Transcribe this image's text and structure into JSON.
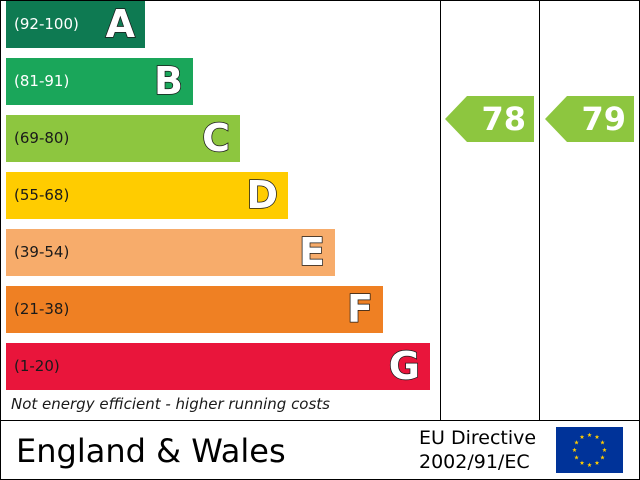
{
  "chart_data": {
    "type": "bar",
    "bands": [
      {
        "range": "(92-100)",
        "letter": "A",
        "color": "#0e7a52",
        "range_color": "#ffffff",
        "level": 1
      },
      {
        "range": "(81-91)",
        "letter": "B",
        "color": "#1aa65a",
        "range_color": "#ffffff",
        "level": 2
      },
      {
        "range": "(69-80)",
        "letter": "C",
        "color": "#8dc63f",
        "range_color": "#1a1a1a",
        "level": 3
      },
      {
        "range": "(55-68)",
        "letter": "D",
        "color": "#ffcc00",
        "range_color": "#1a1a1a",
        "level": 4
      },
      {
        "range": "(39-54)",
        "letter": "E",
        "color": "#f7ac6b",
        "range_color": "#1a1a1a",
        "level": 5
      },
      {
        "range": "(21-38)",
        "letter": "F",
        "color": "#ef8023",
        "range_color": "#1a1a1a",
        "level": 6
      },
      {
        "range": "(1-20)",
        "letter": "G",
        "color": "#e9153b",
        "range_color": "#1a1a1a",
        "level": 7
      }
    ],
    "current_rating": {
      "value": "78",
      "band": "C",
      "color": "#8dc63f"
    },
    "potential_rating": {
      "value": "79",
      "band": "C",
      "color": "#8dc63f"
    },
    "footnote": "Not energy efficient - higher running costs"
  },
  "footer": {
    "region": "England & Wales",
    "directive_line1": "EU Directive",
    "directive_line2": "2002/91/EC"
  },
  "flag": {
    "background": "#003399",
    "star_color": "#ffcc00"
  }
}
